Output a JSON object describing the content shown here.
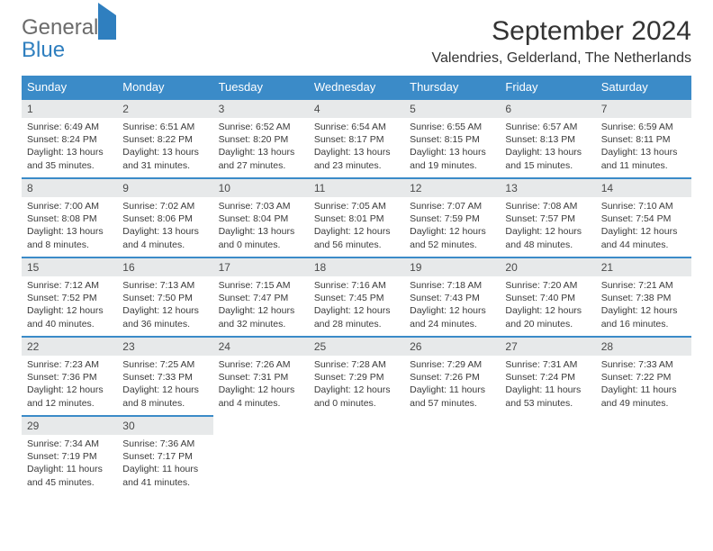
{
  "logo": {
    "line1": "General",
    "line2": "Blue"
  },
  "title": "September 2024",
  "location": "Valendries, Gelderland, The Netherlands",
  "header_bg": "#3b8bc8",
  "header_fg": "#ffffff",
  "daynum_bg": "#e7e9ea",
  "border_color": "#3b8bc8",
  "weekdays": [
    "Sunday",
    "Monday",
    "Tuesday",
    "Wednesday",
    "Thursday",
    "Friday",
    "Saturday"
  ],
  "weeks": [
    [
      {
        "n": "1",
        "sr": "Sunrise: 6:49 AM",
        "ss": "Sunset: 8:24 PM",
        "d1": "Daylight: 13 hours",
        "d2": "and 35 minutes."
      },
      {
        "n": "2",
        "sr": "Sunrise: 6:51 AM",
        "ss": "Sunset: 8:22 PM",
        "d1": "Daylight: 13 hours",
        "d2": "and 31 minutes."
      },
      {
        "n": "3",
        "sr": "Sunrise: 6:52 AM",
        "ss": "Sunset: 8:20 PM",
        "d1": "Daylight: 13 hours",
        "d2": "and 27 minutes."
      },
      {
        "n": "4",
        "sr": "Sunrise: 6:54 AM",
        "ss": "Sunset: 8:17 PM",
        "d1": "Daylight: 13 hours",
        "d2": "and 23 minutes."
      },
      {
        "n": "5",
        "sr": "Sunrise: 6:55 AM",
        "ss": "Sunset: 8:15 PM",
        "d1": "Daylight: 13 hours",
        "d2": "and 19 minutes."
      },
      {
        "n": "6",
        "sr": "Sunrise: 6:57 AM",
        "ss": "Sunset: 8:13 PM",
        "d1": "Daylight: 13 hours",
        "d2": "and 15 minutes."
      },
      {
        "n": "7",
        "sr": "Sunrise: 6:59 AM",
        "ss": "Sunset: 8:11 PM",
        "d1": "Daylight: 13 hours",
        "d2": "and 11 minutes."
      }
    ],
    [
      {
        "n": "8",
        "sr": "Sunrise: 7:00 AM",
        "ss": "Sunset: 8:08 PM",
        "d1": "Daylight: 13 hours",
        "d2": "and 8 minutes."
      },
      {
        "n": "9",
        "sr": "Sunrise: 7:02 AM",
        "ss": "Sunset: 8:06 PM",
        "d1": "Daylight: 13 hours",
        "d2": "and 4 minutes."
      },
      {
        "n": "10",
        "sr": "Sunrise: 7:03 AM",
        "ss": "Sunset: 8:04 PM",
        "d1": "Daylight: 13 hours",
        "d2": "and 0 minutes."
      },
      {
        "n": "11",
        "sr": "Sunrise: 7:05 AM",
        "ss": "Sunset: 8:01 PM",
        "d1": "Daylight: 12 hours",
        "d2": "and 56 minutes."
      },
      {
        "n": "12",
        "sr": "Sunrise: 7:07 AM",
        "ss": "Sunset: 7:59 PM",
        "d1": "Daylight: 12 hours",
        "d2": "and 52 minutes."
      },
      {
        "n": "13",
        "sr": "Sunrise: 7:08 AM",
        "ss": "Sunset: 7:57 PM",
        "d1": "Daylight: 12 hours",
        "d2": "and 48 minutes."
      },
      {
        "n": "14",
        "sr": "Sunrise: 7:10 AM",
        "ss": "Sunset: 7:54 PM",
        "d1": "Daylight: 12 hours",
        "d2": "and 44 minutes."
      }
    ],
    [
      {
        "n": "15",
        "sr": "Sunrise: 7:12 AM",
        "ss": "Sunset: 7:52 PM",
        "d1": "Daylight: 12 hours",
        "d2": "and 40 minutes."
      },
      {
        "n": "16",
        "sr": "Sunrise: 7:13 AM",
        "ss": "Sunset: 7:50 PM",
        "d1": "Daylight: 12 hours",
        "d2": "and 36 minutes."
      },
      {
        "n": "17",
        "sr": "Sunrise: 7:15 AM",
        "ss": "Sunset: 7:47 PM",
        "d1": "Daylight: 12 hours",
        "d2": "and 32 minutes."
      },
      {
        "n": "18",
        "sr": "Sunrise: 7:16 AM",
        "ss": "Sunset: 7:45 PM",
        "d1": "Daylight: 12 hours",
        "d2": "and 28 minutes."
      },
      {
        "n": "19",
        "sr": "Sunrise: 7:18 AM",
        "ss": "Sunset: 7:43 PM",
        "d1": "Daylight: 12 hours",
        "d2": "and 24 minutes."
      },
      {
        "n": "20",
        "sr": "Sunrise: 7:20 AM",
        "ss": "Sunset: 7:40 PM",
        "d1": "Daylight: 12 hours",
        "d2": "and 20 minutes."
      },
      {
        "n": "21",
        "sr": "Sunrise: 7:21 AM",
        "ss": "Sunset: 7:38 PM",
        "d1": "Daylight: 12 hours",
        "d2": "and 16 minutes."
      }
    ],
    [
      {
        "n": "22",
        "sr": "Sunrise: 7:23 AM",
        "ss": "Sunset: 7:36 PM",
        "d1": "Daylight: 12 hours",
        "d2": "and 12 minutes."
      },
      {
        "n": "23",
        "sr": "Sunrise: 7:25 AM",
        "ss": "Sunset: 7:33 PM",
        "d1": "Daylight: 12 hours",
        "d2": "and 8 minutes."
      },
      {
        "n": "24",
        "sr": "Sunrise: 7:26 AM",
        "ss": "Sunset: 7:31 PM",
        "d1": "Daylight: 12 hours",
        "d2": "and 4 minutes."
      },
      {
        "n": "25",
        "sr": "Sunrise: 7:28 AM",
        "ss": "Sunset: 7:29 PM",
        "d1": "Daylight: 12 hours",
        "d2": "and 0 minutes."
      },
      {
        "n": "26",
        "sr": "Sunrise: 7:29 AM",
        "ss": "Sunset: 7:26 PM",
        "d1": "Daylight: 11 hours",
        "d2": "and 57 minutes."
      },
      {
        "n": "27",
        "sr": "Sunrise: 7:31 AM",
        "ss": "Sunset: 7:24 PM",
        "d1": "Daylight: 11 hours",
        "d2": "and 53 minutes."
      },
      {
        "n": "28",
        "sr": "Sunrise: 7:33 AM",
        "ss": "Sunset: 7:22 PM",
        "d1": "Daylight: 11 hours",
        "d2": "and 49 minutes."
      }
    ],
    [
      {
        "n": "29",
        "sr": "Sunrise: 7:34 AM",
        "ss": "Sunset: 7:19 PM",
        "d1": "Daylight: 11 hours",
        "d2": "and 45 minutes."
      },
      {
        "n": "30",
        "sr": "Sunrise: 7:36 AM",
        "ss": "Sunset: 7:17 PM",
        "d1": "Daylight: 11 hours",
        "d2": "and 41 minutes."
      },
      null,
      null,
      null,
      null,
      null
    ]
  ]
}
